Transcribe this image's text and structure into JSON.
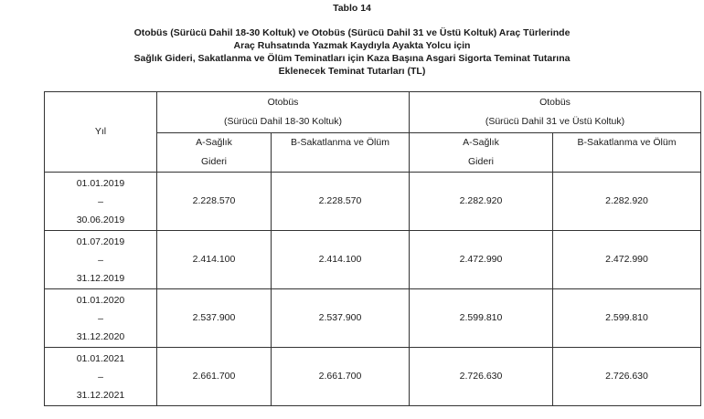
{
  "table_label": "Tablo 14",
  "title_lines": [
    "Otobüs (Sürücü Dahil 18-30 Koltuk) ve Otobüs (Sürücü Dahil 31 ve Üstü Koltuk) Araç Türlerinde",
    "Araç Ruhsatında Yazmak Kaydıyla Ayakta Yolcu için",
    "Sağlık Gideri, Sakatlanma ve Ölüm Teminatları için Kaza Başına Asgari Sigorta Teminat Tutarına",
    "Eklenecek Teminat Tutarları (TL)"
  ],
  "header": {
    "year": "Yıl",
    "group1": {
      "line1": "Otobüs",
      "line2": "(Sürücü Dahil 18-30 Koltuk)"
    },
    "group2": {
      "line1": "Otobüs",
      "line2": "(Sürücü Dahil 31 ve Üstü Koltuk)"
    },
    "a_line1": "A-Sağlık",
    "a_line2": "Gideri",
    "b": "B-Sakatlanma ve Ölüm"
  },
  "rows": [
    {
      "from": "01.01.2019",
      "sep": "–",
      "to": "30.06.2019",
      "values": [
        "2.228.570",
        "2.228.570",
        "2.282.920",
        "2.282.920"
      ]
    },
    {
      "from": "01.07.2019",
      "sep": "–",
      "to": "31.12.2019",
      "values": [
        "2.414.100",
        "2.414.100",
        "2.472.990",
        "2.472.990"
      ]
    },
    {
      "from": "01.01.2020",
      "sep": "–",
      "to": "31.12.2020",
      "values": [
        "2.537.900",
        "2.537.900",
        "2.599.810",
        "2.599.810"
      ]
    },
    {
      "from": "01.01.2021",
      "sep": "–",
      "to": "31.12.2021",
      "values": [
        "2.661.700",
        "2.661.700",
        "2.726.630",
        "2.726.630"
      ]
    }
  ]
}
